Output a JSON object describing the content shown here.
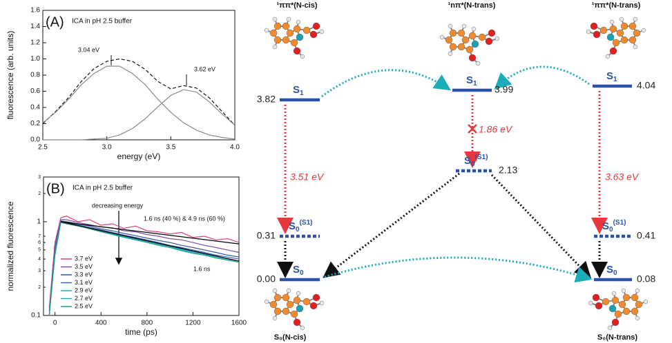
{
  "chart_data": [
    {
      "type": "line",
      "panel_label": "(A)",
      "title": "ICA in pH 2.5 buffer",
      "x_label": "energy (eV)",
      "y_label": "fluorescence (arb. units)",
      "x": [
        2.5,
        2.6,
        2.7,
        2.8,
        2.9,
        3.0,
        3.1,
        3.2,
        3.3,
        3.4,
        3.5,
        3.6,
        3.7,
        3.8,
        3.9,
        4.0
      ],
      "series": [
        {
          "color": "#111111",
          "dashed": true,
          "values": [
            0.2,
            0.35,
            0.52,
            0.72,
            0.88,
            0.97,
            1.0,
            0.97,
            0.87,
            0.72,
            0.63,
            0.67,
            0.64,
            0.52,
            0.35,
            0.18
          ]
        },
        {
          "color": "#8a8a8a",
          "values": [
            0.21,
            0.34,
            0.5,
            0.68,
            0.82,
            0.91,
            0.91,
            0.82,
            0.68,
            0.5,
            0.34,
            0.21,
            0.12,
            0.06,
            0.03,
            0.01
          ]
        },
        {
          "color": "#8a8a8a",
          "values": [
            0,
            0,
            0,
            0,
            0.01,
            0.02,
            0.06,
            0.14,
            0.26,
            0.41,
            0.55,
            0.62,
            0.59,
            0.47,
            0.32,
            0.18
          ]
        }
      ],
      "annotations": [
        "3.04 eV",
        "3.62 eV"
      ],
      "xlim": [
        2.5,
        4.0
      ],
      "xticks": [
        2.5,
        {
          "value": 3,
          "label": "3.0"
        },
        3.5,
        {
          "value": 4,
          "label": "4.0"
        }
      ],
      "ylim": [
        0,
        1.6
      ],
      "yticks": [
        {
          "value": 0,
          "label": "0.0"
        },
        0.2,
        0.4,
        0.6,
        0.8,
        {
          "value": 1,
          "label": "1.0"
        },
        1.2,
        1.4,
        1.6
      ]
    },
    {
      "type": "line",
      "panel_label": "(B)",
      "title": "ICA in pH 2.5 buffer",
      "x_label": "time (ps)",
      "y_label": "normalized fluorescence",
      "log_y": true,
      "x": [
        -50,
        0,
        50,
        100,
        200,
        300,
        400,
        500,
        600,
        700,
        800,
        900,
        1000,
        1100,
        1200,
        1300,
        1400,
        1500,
        1600
      ],
      "series": [
        {
          "name": "3.7 eV",
          "color": "#e0407a",
          "values": [
            0.12,
            0.6,
            1.1,
            1.15,
            1.0,
            1.05,
            0.92,
            0.95,
            0.85,
            0.9,
            0.8,
            0.78,
            0.74,
            0.77,
            0.68,
            0.7,
            0.64,
            0.66,
            0.6
          ]
        },
        {
          "name": "3.5 eV",
          "color": "#7b4fa0",
          "values": [
            0.11,
            0.55,
            1.05,
            1.05,
            0.98,
            0.93,
            0.88,
            0.86,
            0.8,
            0.78,
            0.73,
            0.7,
            0.66,
            0.64,
            0.6,
            0.56,
            0.53,
            0.5,
            0.47
          ]
        },
        {
          "name": "3.3 eV",
          "color": "#3b4fa8",
          "values": [
            0.1,
            0.5,
            1.02,
            1.0,
            0.95,
            0.9,
            0.84,
            0.8,
            0.75,
            0.71,
            0.67,
            0.63,
            0.6,
            0.56,
            0.53,
            0.5,
            0.47,
            0.44,
            0.42
          ]
        },
        {
          "name": "3.1 eV",
          "color": "#2f6fb8",
          "values": [
            0.1,
            0.48,
            1.0,
            0.98,
            0.93,
            0.87,
            0.82,
            0.77,
            0.72,
            0.68,
            0.64,
            0.6,
            0.56,
            0.53,
            0.5,
            0.47,
            0.44,
            0.42,
            0.4
          ]
        },
        {
          "name": "2.9 eV",
          "color": "#2a9fd8",
          "values": [
            0.1,
            0.46,
            1.0,
            0.97,
            0.91,
            0.86,
            0.8,
            0.75,
            0.7,
            0.66,
            0.62,
            0.58,
            0.55,
            0.51,
            0.48,
            0.45,
            0.43,
            0.4,
            0.38
          ]
        },
        {
          "name": "2.7 eV",
          "color": "#1fb0c0",
          "values": [
            0.1,
            0.45,
            0.99,
            0.96,
            0.9,
            0.85,
            0.79,
            0.74,
            0.69,
            0.65,
            0.61,
            0.57,
            0.54,
            0.5,
            0.47,
            0.44,
            0.42,
            0.39,
            0.37
          ]
        },
        {
          "name": "2.5 eV",
          "color": "#20a080",
          "values": [
            0.1,
            0.44,
            0.98,
            0.95,
            0.9,
            0.84,
            0.78,
            0.73,
            0.68,
            0.64,
            0.6,
            0.56,
            0.53,
            0.49,
            0.46,
            0.44,
            0.41,
            0.39,
            0.37
          ]
        },
        {
          "color": "#000000",
          "x": [
            50,
            1600
          ],
          "values": [
            1.0,
            0.58
          ]
        },
        {
          "color": "#000000",
          "x": [
            50,
            1600
          ],
          "values": [
            1.0,
            0.38
          ]
        }
      ],
      "annotations": [
        "decreasing energy",
        "1.6 ns (40 %) & 4.9 ns (60 %)",
        "1.6 ns"
      ],
      "xlim": [
        -100,
        1600
      ],
      "xticks": [
        0,
        400,
        800,
        1200,
        1600
      ],
      "ylim": [
        0.1,
        3
      ],
      "yticks": [
        0.1,
        {
          "value": 0.2,
          "label": "2"
        },
        {
          "value": 0.3,
          "label": "3"
        },
        {
          "value": 0.4,
          "label": "4"
        },
        {
          "value": 0.5,
          "label": "5"
        },
        {
          "value": 0.6,
          "label": "6"
        },
        {
          "value": 0.7,
          "label": "7"
        },
        1,
        {
          "value": 2,
          "label": "2"
        },
        {
          "value": 3,
          "label": "3"
        }
      ]
    }
  ],
  "diagram": {
    "column_titles": [
      "¹ππ*(N-cis)",
      "¹nπ*(N-trans)",
      "¹ππ*(N-trans)"
    ],
    "bottom_titles": [
      "S₀(N-cis)",
      "S₀(N-trans)"
    ],
    "levels": [
      {
        "symbol": "S",
        "subscript": "1",
        "energy": "3.82"
      },
      {
        "symbol": "S",
        "subscript": "1",
        "energy": "3.99"
      },
      {
        "symbol": "S",
        "subscript": "1",
        "energy": "4.04"
      },
      {
        "symbol": "S",
        "subscript": "0",
        "superscript": "(S1)",
        "energy": "2.13"
      },
      {
        "symbol": "S",
        "subscript": "0",
        "superscript": "(S1)",
        "energy": "0.31"
      },
      {
        "symbol": "S",
        "subscript": "0",
        "superscript": "(S1)",
        "energy": "0.41"
      },
      {
        "symbol": "S",
        "subscript": "0",
        "energy": "0.00"
      },
      {
        "symbol": "S",
        "subscript": "0",
        "energy": "0.08"
      }
    ],
    "transitions": [
      "3.51 eV",
      "1.86 eV",
      "3.63 eV"
    ]
  }
}
